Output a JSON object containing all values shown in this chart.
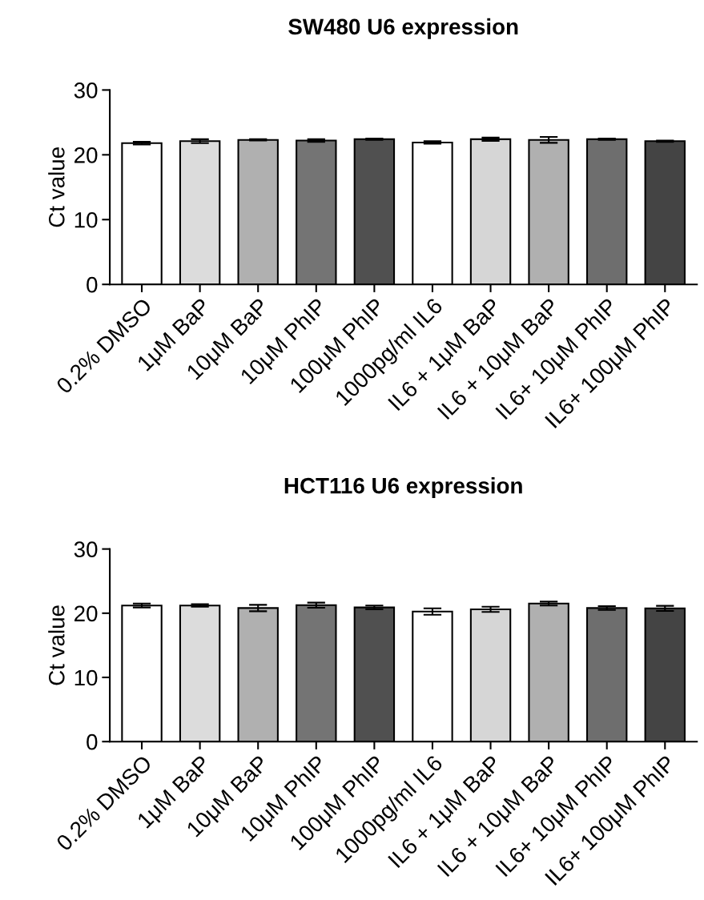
{
  "chart_data": [
    {
      "type": "bar",
      "title": "SW480 U6 expression",
      "ylabel": "Ct value",
      "categories": [
        "0.2% DMSO",
        "1μM BaP",
        "10μM BaP",
        "10μM PhIP",
        "100μM PhIP",
        "1000pg/ml IL6",
        "IL6 + 1μM BaP",
        "IL6 + 10μM BaP",
        "IL6+ 10μM PhIP",
        "IL6+ 100μM PhIP"
      ],
      "values": [
        21.8,
        22.1,
        22.3,
        22.2,
        22.4,
        21.9,
        22.4,
        22.3,
        22.4,
        22.1
      ],
      "errors": [
        0.2,
        0.3,
        0.1,
        0.2,
        0.1,
        0.2,
        0.25,
        0.45,
        0.1,
        0.1
      ],
      "colors": [
        "#ffffff",
        "#dcdcdc",
        "#b0b0b0",
        "#747474",
        "#505050",
        "#ffffff",
        "#d6d6d6",
        "#b0b0b0",
        "#6e6e6e",
        "#444444"
      ],
      "ylim": [
        0,
        30
      ],
      "yticks": [
        0,
        10,
        20,
        30
      ],
      "grid": false,
      "legend": false
    },
    {
      "type": "bar",
      "title": "HCT116 U6 expression",
      "ylabel": "Ct value",
      "categories": [
        "0.2% DMSO",
        "1μM BaP",
        "10μM BaP",
        "10μM PhIP",
        "100μM PhIP",
        "1000pg/ml IL6",
        "IL6 + 1μM BaP",
        "IL6 + 10μM BaP",
        "IL6+ 10μM PhIP",
        "IL6+ 100μM PhIP"
      ],
      "values": [
        21.2,
        21.2,
        20.8,
        21.25,
        20.9,
        20.25,
        20.6,
        21.5,
        20.8,
        20.75
      ],
      "errors": [
        0.3,
        0.2,
        0.5,
        0.4,
        0.3,
        0.5,
        0.4,
        0.3,
        0.3,
        0.4
      ],
      "colors": [
        "#ffffff",
        "#dcdcdc",
        "#b0b0b0",
        "#747474",
        "#505050",
        "#ffffff",
        "#d6d6d6",
        "#b0b0b0",
        "#6e6e6e",
        "#444444"
      ],
      "ylim": [
        0,
        30
      ],
      "yticks": [
        0,
        10,
        20,
        30
      ],
      "grid": false,
      "legend": false
    }
  ]
}
